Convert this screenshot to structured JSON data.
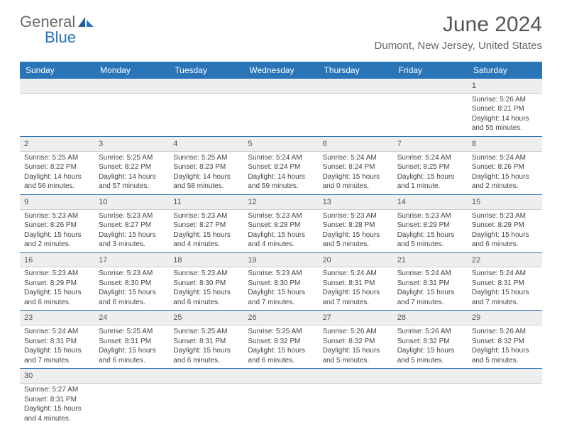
{
  "logo": {
    "text1": "General",
    "text2": "Blue",
    "color1": "#6a6a6a",
    "color2": "#2a74b8"
  },
  "title": "June 2024",
  "location": "Dumont, New Jersey, United States",
  "header_bg": "#2a74b8",
  "header_fg": "#ffffff",
  "daynum_bg": "#eeeeee",
  "row_border": "#2a74b8",
  "dayHeaders": [
    "Sunday",
    "Monday",
    "Tuesday",
    "Wednesday",
    "Thursday",
    "Friday",
    "Saturday"
  ],
  "weeks": [
    [
      null,
      null,
      null,
      null,
      null,
      null,
      {
        "n": "1",
        "sr": "5:26 AM",
        "ss": "8:21 PM",
        "dl": "14 hours and 55 minutes."
      }
    ],
    [
      {
        "n": "2",
        "sr": "5:25 AM",
        "ss": "8:22 PM",
        "dl": "14 hours and 56 minutes."
      },
      {
        "n": "3",
        "sr": "5:25 AM",
        "ss": "8:22 PM",
        "dl": "14 hours and 57 minutes."
      },
      {
        "n": "4",
        "sr": "5:25 AM",
        "ss": "8:23 PM",
        "dl": "14 hours and 58 minutes."
      },
      {
        "n": "5",
        "sr": "5:24 AM",
        "ss": "8:24 PM",
        "dl": "14 hours and 59 minutes."
      },
      {
        "n": "6",
        "sr": "5:24 AM",
        "ss": "8:24 PM",
        "dl": "15 hours and 0 minutes."
      },
      {
        "n": "7",
        "sr": "5:24 AM",
        "ss": "8:25 PM",
        "dl": "15 hours and 1 minute."
      },
      {
        "n": "8",
        "sr": "5:24 AM",
        "ss": "8:26 PM",
        "dl": "15 hours and 2 minutes."
      }
    ],
    [
      {
        "n": "9",
        "sr": "5:23 AM",
        "ss": "8:26 PM",
        "dl": "15 hours and 2 minutes."
      },
      {
        "n": "10",
        "sr": "5:23 AM",
        "ss": "8:27 PM",
        "dl": "15 hours and 3 minutes."
      },
      {
        "n": "11",
        "sr": "5:23 AM",
        "ss": "8:27 PM",
        "dl": "15 hours and 4 minutes."
      },
      {
        "n": "12",
        "sr": "5:23 AM",
        "ss": "8:28 PM",
        "dl": "15 hours and 4 minutes."
      },
      {
        "n": "13",
        "sr": "5:23 AM",
        "ss": "8:28 PM",
        "dl": "15 hours and 5 minutes."
      },
      {
        "n": "14",
        "sr": "5:23 AM",
        "ss": "8:29 PM",
        "dl": "15 hours and 5 minutes."
      },
      {
        "n": "15",
        "sr": "5:23 AM",
        "ss": "8:29 PM",
        "dl": "15 hours and 6 minutes."
      }
    ],
    [
      {
        "n": "16",
        "sr": "5:23 AM",
        "ss": "8:29 PM",
        "dl": "15 hours and 6 minutes."
      },
      {
        "n": "17",
        "sr": "5:23 AM",
        "ss": "8:30 PM",
        "dl": "15 hours and 6 minutes."
      },
      {
        "n": "18",
        "sr": "5:23 AM",
        "ss": "8:30 PM",
        "dl": "15 hours and 6 minutes."
      },
      {
        "n": "19",
        "sr": "5:23 AM",
        "ss": "8:30 PM",
        "dl": "15 hours and 7 minutes."
      },
      {
        "n": "20",
        "sr": "5:24 AM",
        "ss": "8:31 PM",
        "dl": "15 hours and 7 minutes."
      },
      {
        "n": "21",
        "sr": "5:24 AM",
        "ss": "8:31 PM",
        "dl": "15 hours and 7 minutes."
      },
      {
        "n": "22",
        "sr": "5:24 AM",
        "ss": "8:31 PM",
        "dl": "15 hours and 7 minutes."
      }
    ],
    [
      {
        "n": "23",
        "sr": "5:24 AM",
        "ss": "8:31 PM",
        "dl": "15 hours and 7 minutes."
      },
      {
        "n": "24",
        "sr": "5:25 AM",
        "ss": "8:31 PM",
        "dl": "15 hours and 6 minutes."
      },
      {
        "n": "25",
        "sr": "5:25 AM",
        "ss": "8:31 PM",
        "dl": "15 hours and 6 minutes."
      },
      {
        "n": "26",
        "sr": "5:25 AM",
        "ss": "8:32 PM",
        "dl": "15 hours and 6 minutes."
      },
      {
        "n": "27",
        "sr": "5:26 AM",
        "ss": "8:32 PM",
        "dl": "15 hours and 5 minutes."
      },
      {
        "n": "28",
        "sr": "5:26 AM",
        "ss": "8:32 PM",
        "dl": "15 hours and 5 minutes."
      },
      {
        "n": "29",
        "sr": "5:26 AM",
        "ss": "8:32 PM",
        "dl": "15 hours and 5 minutes."
      }
    ],
    [
      {
        "n": "30",
        "sr": "5:27 AM",
        "ss": "8:31 PM",
        "dl": "15 hours and 4 minutes."
      },
      null,
      null,
      null,
      null,
      null,
      null
    ]
  ],
  "labels": {
    "sunrise": "Sunrise:",
    "sunset": "Sunset:",
    "daylight": "Daylight:"
  }
}
